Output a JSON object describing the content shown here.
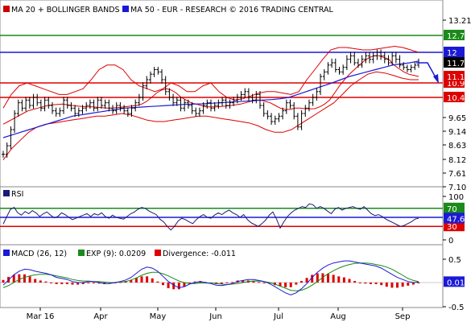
{
  "chart_data": [
    {
      "type": "line",
      "panel": "price",
      "title": "MA 20 + BOLLINGER BANDS",
      "legend": [
        {
          "label": "MA 20 + BOLLINGER BANDS",
          "color": "#cc0000"
        },
        {
          "label": "MA 50 - EUR - RESEARCH © 2016 TRADING CENTRAL",
          "color": "#1a1ad6"
        }
      ],
      "x_ticks": [
        "Mar 16",
        "Apr",
        "May",
        "Jun",
        "Jul",
        "Aug",
        "Sep"
      ],
      "y_ticks": [
        "13.21",
        "12.7",
        "12",
        "11.7",
        "11.1",
        "10.9",
        "10.4",
        "9.65",
        "9.14",
        "8.63",
        "8.12",
        "7.61",
        "7.10"
      ],
      "ylim": [
        7.1,
        13.5
      ],
      "levels": [
        {
          "value": 12.7,
          "label": "12.7",
          "color": "#1a8a1a"
        },
        {
          "value": 12.0,
          "label": "12",
          "color": "#1a1ad6"
        },
        {
          "value": 10.9,
          "label": "10.9",
          "color": "#dd0000"
        },
        {
          "value": 10.4,
          "label": "10.4",
          "color": "#dd0000"
        }
      ],
      "last_price": {
        "value": 11.7,
        "label": "11.7"
      },
      "ma20_tag": {
        "value": 11.1,
        "label": "11.1"
      },
      "close": [
        8.3,
        8.6,
        9.2,
        9.8,
        10.2,
        10.0,
        10.3,
        10.1,
        10.4,
        10.2,
        10.0,
        10.3,
        10.1,
        9.9,
        9.8,
        9.9,
        10.3,
        10.1,
        10.0,
        9.8,
        9.9,
        10.0,
        10.1,
        10.2,
        10.0,
        10.3,
        10.1,
        10.2,
        10.0,
        9.9,
        10.1,
        10.0,
        9.9,
        9.8,
        10.0,
        10.2,
        10.4,
        10.8,
        11.0,
        11.2,
        11.4,
        11.3,
        11.0,
        10.6,
        10.4,
        10.2,
        10.3,
        10.0,
        10.2,
        10.1,
        9.9,
        9.8,
        9.9,
        10.1,
        10.2,
        10.0,
        10.1,
        10.2,
        10.3,
        10.1,
        10.2,
        10.3,
        10.4,
        10.5,
        10.6,
        10.4,
        10.3,
        10.5,
        10.1,
        9.8,
        9.7,
        9.5,
        9.6,
        9.7,
        9.9,
        10.2,
        10.1,
        9.7,
        9.3,
        9.8,
        10.0,
        10.2,
        10.4,
        10.6,
        11.1,
        11.3,
        11.6,
        11.7,
        11.4,
        11.3,
        11.5,
        11.8,
        11.9,
        11.7,
        11.6,
        11.8,
        11.9,
        11.8,
        11.9,
        12.0,
        11.9,
        11.8,
        11.7,
        11.9,
        11.8,
        11.6,
        11.5,
        11.4,
        11.5,
        11.6,
        11.7
      ],
      "ma20": [
        9.4,
        9.5,
        9.6,
        9.7,
        9.8,
        9.9,
        9.95,
        10.0,
        10.05,
        10.1,
        10.12,
        10.14,
        10.15,
        10.12,
        10.1,
        10.08,
        10.06,
        10.05,
        10.05,
        10.03,
        10.02,
        10.0,
        10.0,
        10.02,
        10.04,
        10.06,
        10.08,
        10.1,
        10.15,
        10.25,
        10.4,
        10.55,
        10.65,
        10.7,
        10.65,
        10.55,
        10.4,
        10.3,
        10.2,
        10.15,
        10.1,
        10.05,
        10.05,
        10.05,
        10.06,
        10.08,
        10.1,
        10.12,
        10.15,
        10.2,
        10.25,
        10.3,
        10.3,
        10.25,
        10.2,
        10.1,
        10.0,
        9.95,
        9.95,
        10.0,
        10.0,
        9.98,
        9.97,
        9.98,
        10.05,
        10.15,
        10.3,
        10.55,
        10.8,
        11.0,
        11.2,
        11.4,
        11.6,
        11.75,
        11.85,
        11.9,
        11.9,
        11.85,
        11.8,
        11.6,
        11.45,
        11.3,
        11.2,
        11.15,
        11.1
      ],
      "ma50": [
        8.9,
        9.0,
        9.1,
        9.2,
        9.3,
        9.4,
        9.5,
        9.6,
        9.7,
        9.75,
        9.8,
        9.85,
        9.9,
        9.95,
        10.0,
        10.02,
        10.04,
        10.06,
        10.08,
        10.1,
        10.12,
        10.14,
        10.15,
        10.16,
        10.18,
        10.2,
        10.22,
        10.24,
        10.26,
        10.28,
        10.3,
        10.32,
        10.35,
        10.4,
        10.5,
        10.6,
        10.7,
        10.8,
        10.9,
        11.0,
        11.1,
        11.2,
        11.3,
        11.4,
        11.5,
        11.6,
        11.65,
        11.7,
        11.75
      ],
      "boll_upper": [
        10.0,
        10.5,
        10.8,
        10.9,
        10.8,
        10.7,
        10.6,
        10.5,
        10.5,
        10.6,
        10.7,
        11.0,
        11.4,
        11.6,
        11.6,
        11.4,
        11.0,
        10.8,
        10.7,
        10.6,
        10.7,
        10.9,
        10.8,
        10.6,
        10.6,
        10.8,
        10.9,
        10.6,
        10.4,
        10.3,
        10.35,
        10.45,
        10.55,
        10.6,
        10.6,
        10.55,
        10.5,
        10.6,
        11.0,
        11.4,
        11.8,
        12.1,
        12.2,
        12.2,
        12.15,
        12.1,
        12.1,
        12.15,
        12.2,
        12.25,
        12.2,
        12.1,
        12.0
      ],
      "boll_lower": [
        8.1,
        8.5,
        8.8,
        9.1,
        9.3,
        9.4,
        9.45,
        9.5,
        9.55,
        9.6,
        9.65,
        9.7,
        9.7,
        9.75,
        9.8,
        9.75,
        9.65,
        9.55,
        9.5,
        9.5,
        9.55,
        9.6,
        9.65,
        9.7,
        9.7,
        9.65,
        9.6,
        9.55,
        9.5,
        9.45,
        9.35,
        9.2,
        9.1,
        9.1,
        9.2,
        9.4,
        9.6,
        9.8,
        10.0,
        10.2,
        10.5,
        10.8,
        11.0,
        11.2,
        11.3,
        11.25,
        11.15,
        11.05,
        11.0,
        11.0
      ]
    },
    {
      "type": "line",
      "panel": "rsi",
      "legend": [
        {
          "label": "RSI",
          "color": "#1a1a7a"
        }
      ],
      "y_ticks": [
        "100",
        "70",
        "47.61",
        "30",
        "0"
      ],
      "ylim": [
        0,
        100
      ],
      "levels": [
        {
          "value": 70,
          "label": "70",
          "color": "#1a8a1a"
        },
        {
          "value": 50,
          "label": "",
          "color": "#1a1ad6"
        },
        {
          "value": 30,
          "label": "30",
          "color": "#dd0000"
        }
      ],
      "last_value": {
        "value": 47.61,
        "label": "47.61"
      },
      "values": [
        35,
        52,
        68,
        72,
        60,
        55,
        63,
        58,
        65,
        60,
        52,
        58,
        62,
        55,
        49,
        52,
        60,
        56,
        50,
        45,
        48,
        52,
        55,
        58,
        52,
        58,
        55,
        60,
        52,
        48,
        55,
        50,
        48,
        46,
        52,
        58,
        62,
        68,
        72,
        70,
        64,
        60,
        56,
        46,
        40,
        30,
        22,
        30,
        42,
        48,
        45,
        40,
        36,
        45,
        52,
        56,
        50,
        48,
        55,
        60,
        56,
        62,
        66,
        60,
        56,
        50,
        56,
        45,
        38,
        34,
        30,
        36,
        44,
        55,
        62,
        46,
        26,
        40,
        52,
        60,
        66,
        70,
        74,
        72,
        80,
        78,
        70,
        74,
        70,
        64,
        58,
        68,
        72,
        66,
        70,
        72,
        74,
        70,
        68,
        74,
        66,
        58,
        54,
        56,
        52,
        46,
        42,
        38,
        34,
        30,
        32,
        36,
        40,
        46,
        48
      ]
    },
    {
      "type": "bar",
      "panel": "macd",
      "legend": [
        {
          "label": "MACD (26, 12)",
          "color": "#1a1ad6"
        },
        {
          "label": "EXP (9): 0.0209",
          "color": "#1a8a1a"
        },
        {
          "label": "Divergence: -0.011",
          "color": "#dd0000"
        }
      ],
      "y_ticks": [
        "0.5",
        "0.01",
        "-0.5"
      ],
      "ylim": [
        -0.5,
        0.5
      ],
      "last_value": {
        "value": 0.01,
        "label": "0.01"
      },
      "macd": [
        -0.05,
        0.05,
        0.15,
        0.22,
        0.26,
        0.25,
        0.22,
        0.2,
        0.18,
        0.15,
        0.1,
        0.08,
        0.06,
        0.02,
        0.0,
        0.0,
        0.02,
        0.02,
        0.0,
        -0.02,
        -0.02,
        0.0,
        0.02,
        0.05,
        0.1,
        0.18,
        0.26,
        0.3,
        0.28,
        0.22,
        0.12,
        0.02,
        -0.05,
        -0.1,
        -0.08,
        -0.03,
        0.0,
        0.02,
        0.0,
        -0.02,
        -0.05,
        -0.06,
        -0.04,
        -0.02,
        0.02,
        0.04,
        0.06,
        0.06,
        0.04,
        0.02,
        -0.02,
        -0.08,
        -0.14,
        -0.2,
        -0.24,
        -0.2,
        -0.12,
        -0.02,
        0.1,
        0.2,
        0.28,
        0.34,
        0.38,
        0.4,
        0.42,
        0.42,
        0.4,
        0.38,
        0.36,
        0.34,
        0.32,
        0.28,
        0.22,
        0.16,
        0.1,
        0.06,
        0.02,
        0.0,
        0.01
      ],
      "signal": [
        -0.1,
        -0.06,
        0.0,
        0.06,
        0.1,
        0.13,
        0.15,
        0.16,
        0.16,
        0.15,
        0.13,
        0.11,
        0.09,
        0.06,
        0.04,
        0.03,
        0.03,
        0.02,
        0.02,
        0.01,
        0.0,
        0.0,
        0.01,
        0.02,
        0.05,
        0.09,
        0.14,
        0.18,
        0.2,
        0.2,
        0.17,
        0.13,
        0.08,
        0.03,
        0.0,
        -0.02,
        -0.02,
        -0.01,
        -0.01,
        -0.01,
        -0.02,
        -0.03,
        -0.04,
        -0.03,
        -0.02,
        0.0,
        0.02,
        0.03,
        0.03,
        0.02,
        0.0,
        -0.03,
        -0.07,
        -0.11,
        -0.15,
        -0.16,
        -0.15,
        -0.11,
        -0.05,
        0.02,
        0.1,
        0.17,
        0.23,
        0.28,
        0.32,
        0.35,
        0.37,
        0.38,
        0.38,
        0.37,
        0.35,
        0.33,
        0.3,
        0.26,
        0.2,
        0.14,
        0.08,
        0.04,
        0.02
      ],
      "divergence": [
        0.05,
        0.11,
        0.15,
        0.16,
        0.16,
        0.12,
        0.07,
        0.04,
        0.02,
        0.0,
        -0.03,
        -0.03,
        -0.03,
        -0.04,
        -0.04,
        -0.03,
        -0.01,
        0.0,
        -0.02,
        -0.03,
        -0.02,
        0.0,
        0.01,
        0.03,
        0.05,
        0.09,
        0.12,
        0.12,
        0.08,
        0.02,
        -0.05,
        -0.11,
        -0.13,
        -0.13,
        -0.08,
        -0.01,
        0.02,
        0.03,
        0.01,
        -0.01,
        -0.03,
        -0.03,
        0.0,
        0.01,
        0.04,
        0.04,
        0.04,
        0.03,
        0.01,
        0.0,
        -0.02,
        -0.05,
        -0.07,
        -0.09,
        -0.09,
        -0.04,
        0.03,
        0.09,
        0.15,
        0.18,
        0.18,
        0.17,
        0.15,
        0.12,
        0.1,
        0.07,
        0.03,
        0.0,
        -0.02,
        -0.03,
        -0.03,
        -0.05,
        -0.08,
        -0.1,
        -0.1,
        -0.08,
        -0.06,
        -0.04,
        -0.01
      ]
    }
  ]
}
